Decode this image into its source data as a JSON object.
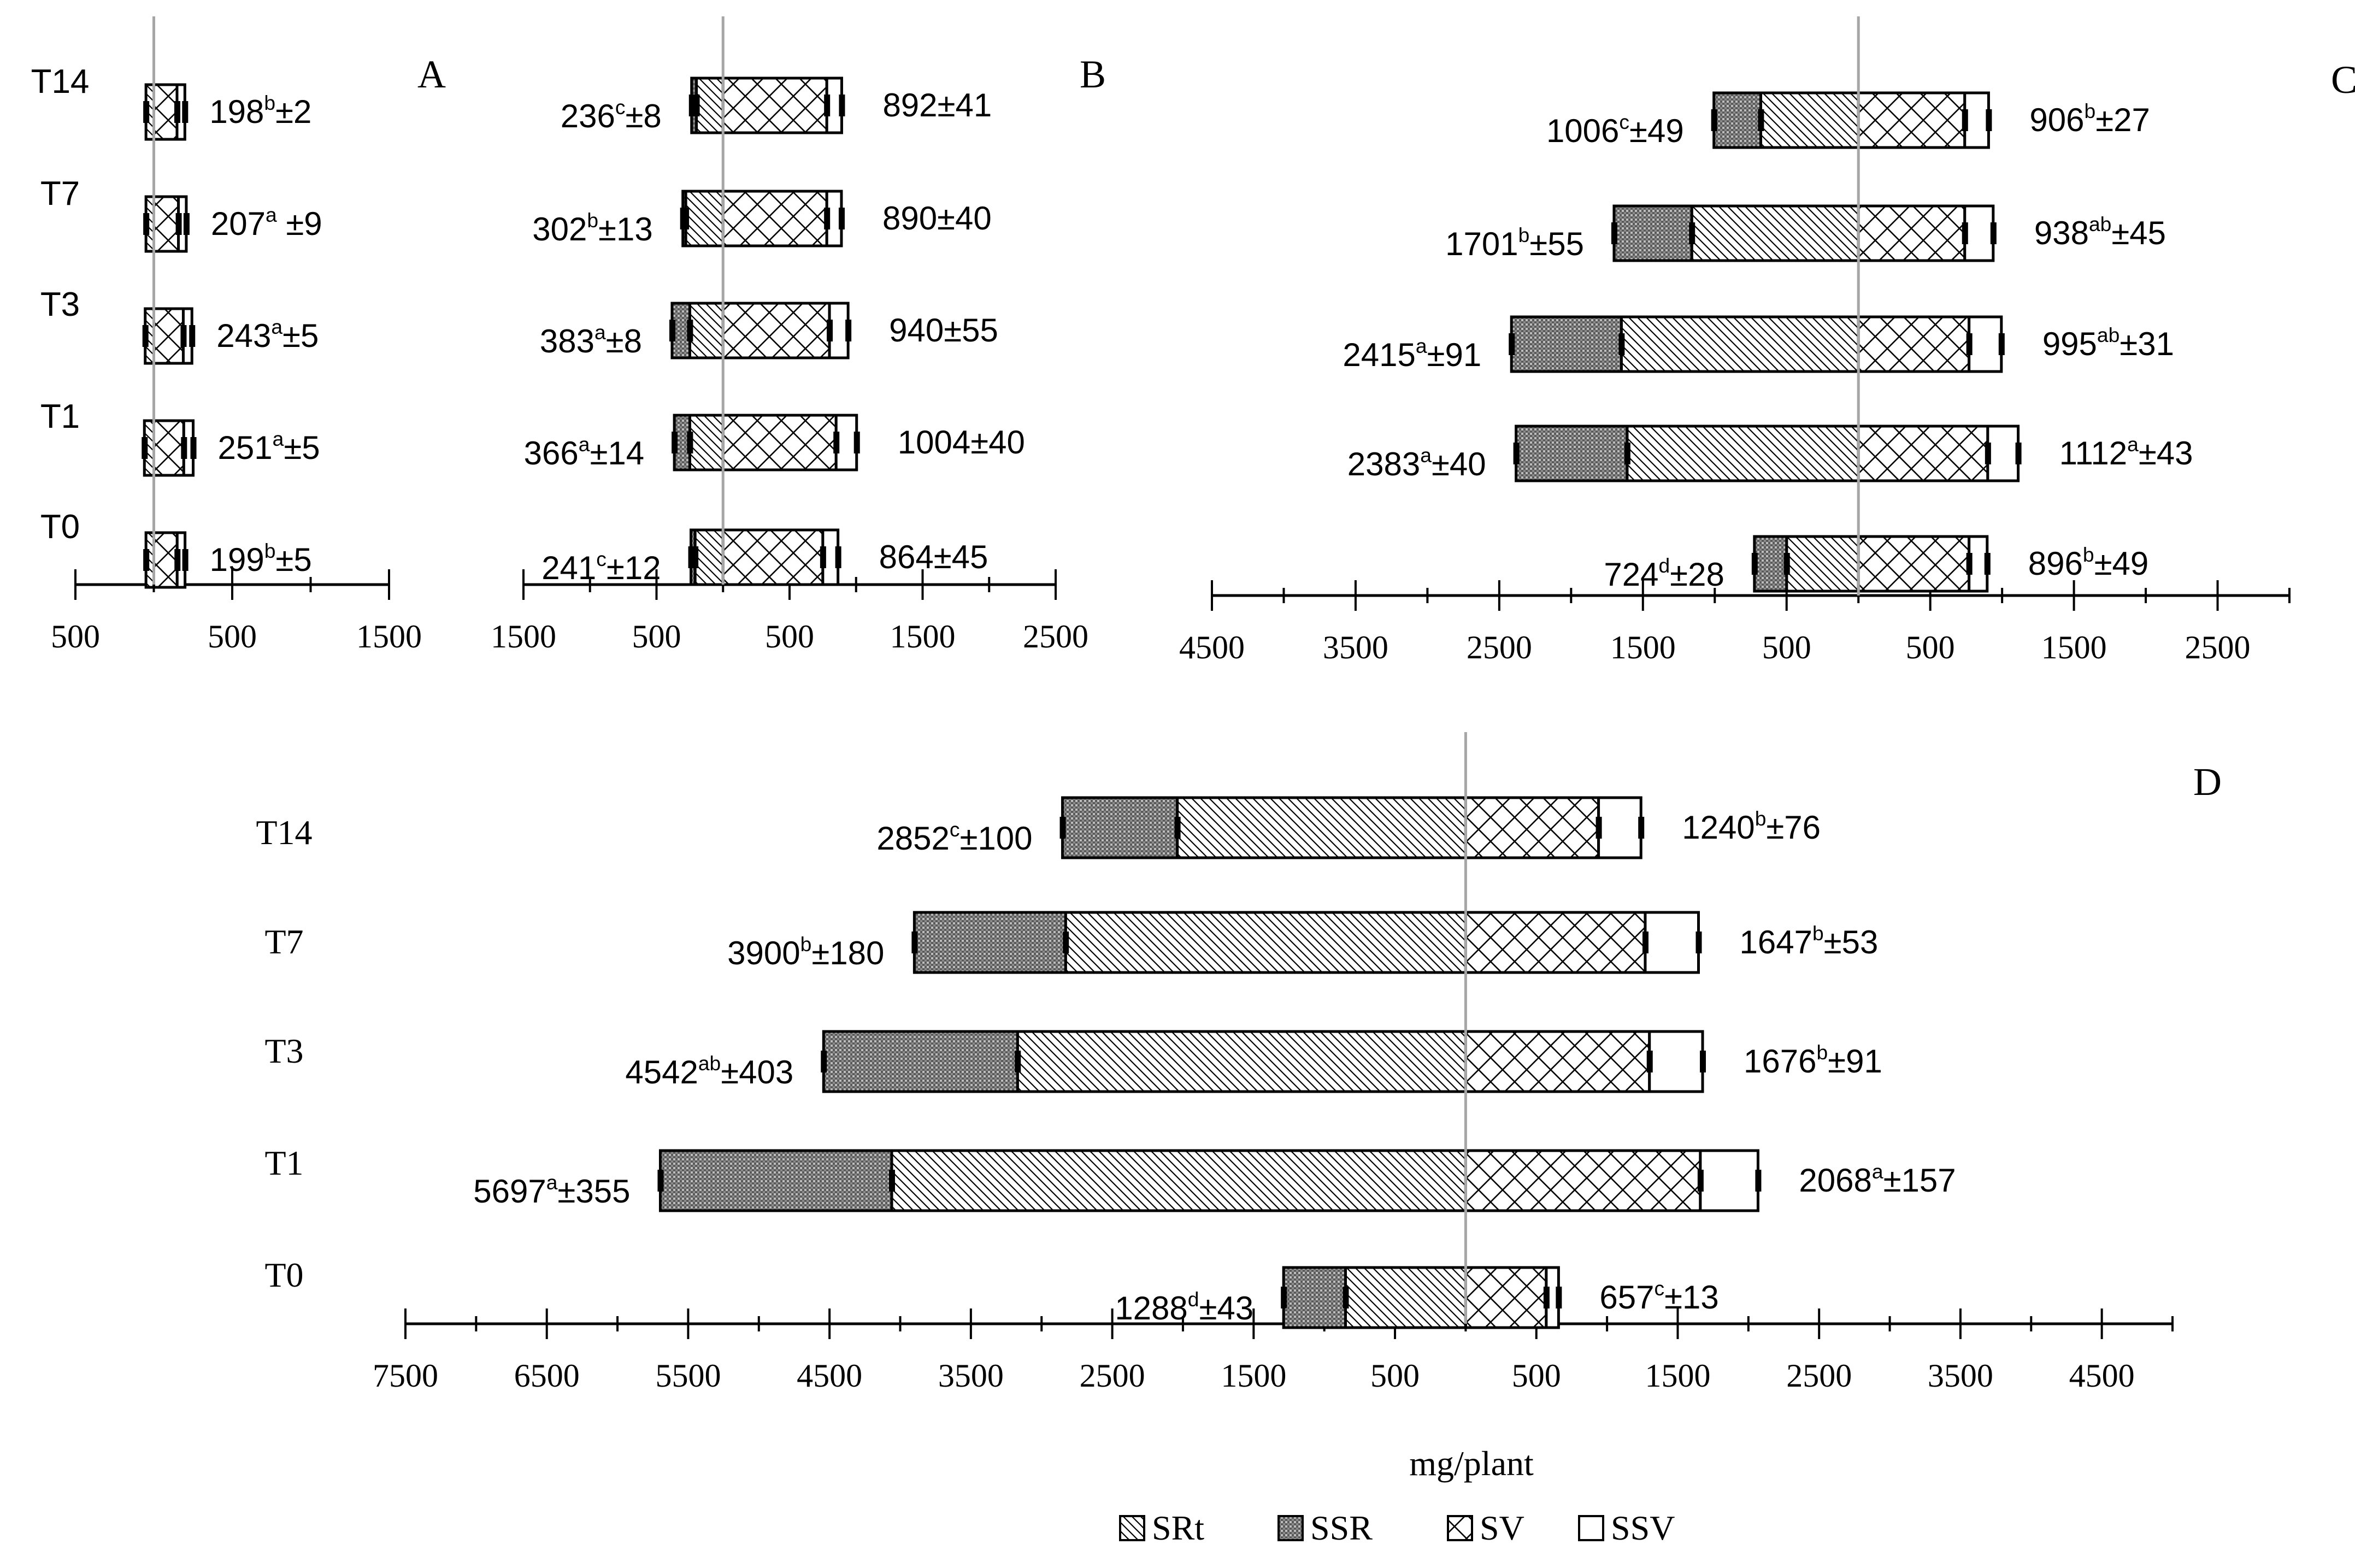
{
  "figure": {
    "xlabel": "mg/plant",
    "legend": [
      {
        "key": "SRt",
        "pattern": "srt"
      },
      {
        "key": "SSR",
        "pattern": "ssr"
      },
      {
        "key": "SV",
        "pattern": "sv"
      },
      {
        "key": "SSV",
        "pattern": "ssv"
      }
    ],
    "colors": {
      "axis": "#000000",
      "center_line": "#a6a6a6",
      "fill": "#ffffff"
    }
  },
  "chart_data": [
    {
      "panel": "A",
      "type": "bar",
      "categories": [
        "T14",
        "T7",
        "T3",
        "T1",
        "T0"
      ],
      "tick_labels": [
        "500",
        "500",
        "1500"
      ],
      "xlim": [
        -500,
        1500
      ],
      "series": [
        {
          "name": "SRt",
          "values": [
            -50,
            -50,
            -55,
            -60,
            -50
          ]
        },
        {
          "name": "SV",
          "values": [
            148,
            157,
            188,
            191,
            149
          ]
        },
        {
          "name": "SSV",
          "values": [
            50,
            50,
            55,
            60,
            50
          ]
        }
      ],
      "labels": [
        {
          "base": "198",
          "sup": "b",
          "rest": "±2"
        },
        {
          "base": "207",
          "sup": "a",
          "rest": " ±9"
        },
        {
          "base": "243",
          "sup": "a",
          "rest": "±5"
        },
        {
          "base": "251",
          "sup": "a",
          "rest": "±5"
        },
        {
          "base": "199",
          "sup": "b",
          "rest": "±5"
        }
      ]
    },
    {
      "panel": "B",
      "type": "bar",
      "categories": [
        "T14",
        "T7",
        "T3",
        "T1",
        "T0"
      ],
      "tick_labels": [
        "1500",
        "500",
        "500",
        "1500",
        "2500"
      ],
      "xlim": [
        -1500,
        2500
      ],
      "series": [
        {
          "name": "SRt",
          "values": [
            -200,
            -280,
            -250,
            -250,
            -210
          ]
        },
        {
          "name": "SSR",
          "values": [
            -36,
            -22,
            -133,
            -116,
            -31
          ]
        },
        {
          "name": "SV",
          "values": [
            780,
            780,
            800,
            850,
            750
          ]
        },
        {
          "name": "SSV",
          "values": [
            112,
            110,
            140,
            154,
            114
          ]
        }
      ],
      "left_labels": [
        {
          "base": "236",
          "sup": "c",
          "rest": "±8"
        },
        {
          "base": "302",
          "sup": "b",
          "rest": "±13"
        },
        {
          "base": "383",
          "sup": "a",
          "rest": "±8"
        },
        {
          "base": "366",
          "sup": "a",
          "rest": "±14"
        },
        {
          "base": "241",
          "sup": "c",
          "rest": "±12"
        }
      ],
      "right_labels": [
        "892±41",
        "890±40",
        "940±55",
        "1004±40",
        "864±45"
      ]
    },
    {
      "panel": "C",
      "type": "bar",
      "categories": [
        "T14",
        "T7",
        "T3",
        "T1",
        "T0"
      ],
      "tick_labels": [
        "4500",
        "3500",
        "2500",
        "1500",
        "500",
        "500",
        "1500",
        "2500"
      ],
      "xlim": [
        -4500,
        3000
      ],
      "series": [
        {
          "name": "SRt",
          "values": [
            -680,
            -1160,
            -1650,
            -1610,
            -500
          ]
        },
        {
          "name": "SSR",
          "values": [
            -326,
            -541,
            -765,
            -773,
            -224
          ]
        },
        {
          "name": "SV",
          "values": [
            740,
            740,
            770,
            900,
            770
          ]
        },
        {
          "name": "SSV",
          "values": [
            166,
            198,
            225,
            212,
            126
          ]
        }
      ],
      "left_labels": [
        {
          "base": "1006",
          "sup": "c",
          "rest": "±49"
        },
        {
          "base": "1701",
          "sup": "b",
          "rest": "±55"
        },
        {
          "base": "2415",
          "sup": "a",
          "rest": "±91"
        },
        {
          "base": "2383",
          "sup": "a",
          "rest": "±40"
        },
        {
          "base": "724",
          "sup": "d",
          "rest": "±28"
        }
      ],
      "right_labels": [
        {
          "base": "906",
          "sup": "b",
          "rest": "±27"
        },
        {
          "base": "938",
          "sup": "ab",
          "rest": "±45"
        },
        {
          "base": "995",
          "sup": "ab",
          "rest": "±31"
        },
        {
          "base": "1112",
          "sup": "a",
          "rest": "±43"
        },
        {
          "base": "896",
          "sup": "b",
          "rest": "±49"
        }
      ]
    },
    {
      "panel": "D",
      "type": "bar",
      "categories": [
        "T14",
        "T7",
        "T3",
        "T1",
        "T0"
      ],
      "tick_labels": [
        "7500",
        "6500",
        "5500",
        "4500",
        "3500",
        "2500",
        "1500",
        "500",
        "500",
        "1500",
        "2500",
        "3500",
        "4500"
      ],
      "xlim": [
        -7500,
        5000
      ],
      "series": [
        {
          "name": "SRt",
          "values": [
            -2040,
            -2830,
            -3170,
            -4060,
            -850
          ]
        },
        {
          "name": "SSR",
          "values": [
            -812,
            -1070,
            -1372,
            -1637,
            -438
          ]
        },
        {
          "name": "SV",
          "values": [
            940,
            1270,
            1300,
            1660,
            570
          ]
        },
        {
          "name": "SSV",
          "values": [
            300,
            377,
            376,
            408,
            87
          ]
        }
      ],
      "left_labels": [
        {
          "base": "2852",
          "sup": "c",
          "rest": "±100"
        },
        {
          "base": "3900",
          "sup": "b",
          "rest": "±180"
        },
        {
          "base": "4542",
          "sup": "ab",
          "rest": "±403"
        },
        {
          "base": "5697",
          "sup": "a",
          "rest": "±355"
        },
        {
          "base": "1288",
          "sup": "d",
          "rest": "±43"
        }
      ],
      "right_labels": [
        {
          "base": "1240",
          "sup": "b",
          "rest": "±76"
        },
        {
          "base": "1647",
          "sup": "b",
          "rest": "±53"
        },
        {
          "base": "1676",
          "sup": "b",
          "rest": "±91"
        },
        {
          "base": "2068",
          "sup": "a",
          "rest": "±157"
        },
        {
          "base": "657",
          "sup": "c",
          "rest": "±13"
        }
      ]
    }
  ]
}
